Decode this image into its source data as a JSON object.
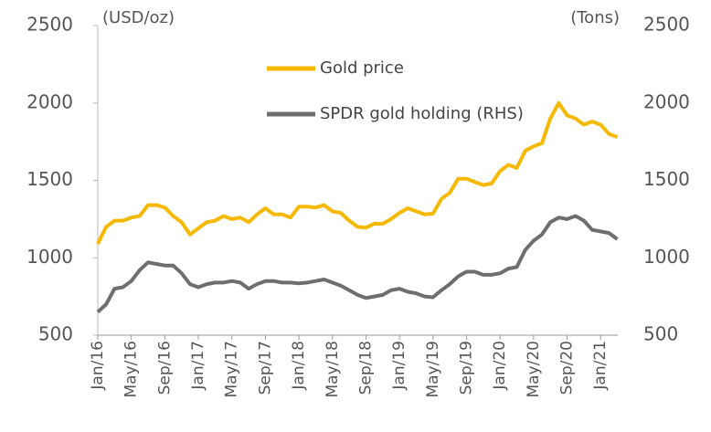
{
  "chart_data": {
    "type": "line",
    "y_label": "(USD/oz)",
    "y2_label": "(Tons)",
    "categories": [
      "Jan/16",
      null,
      null,
      null,
      "May/16",
      null,
      null,
      null,
      "Sep/16",
      null,
      null,
      null,
      "Jan/17",
      null,
      null,
      null,
      "May/17",
      null,
      null,
      null,
      "Sep/17",
      null,
      null,
      null,
      "Jan/18",
      null,
      null,
      null,
      "May/18",
      null,
      null,
      null,
      "Sep/18",
      null,
      null,
      null,
      "Jan/19",
      null,
      null,
      null,
      "May/19",
      null,
      null,
      null,
      "Sep/19",
      null,
      null,
      null,
      "Jan/20",
      null,
      null,
      null,
      "May/20",
      null,
      null,
      null,
      "Sep/20",
      null,
      null,
      null,
      "Jan/21",
      null,
      null
    ],
    "series": [
      {
        "name": "Gold price",
        "color": "#f7b900",
        "values": [
          1090,
          1200,
          1240,
          1240,
          1260,
          1270,
          1340,
          1340,
          1325,
          1270,
          1230,
          1150,
          1190,
          1230,
          1240,
          1270,
          1250,
          1260,
          1230,
          1280,
          1320,
          1280,
          1280,
          1260,
          1330,
          1330,
          1325,
          1340,
          1300,
          1290,
          1240,
          1200,
          1195,
          1220,
          1220,
          1250,
          1290,
          1320,
          1300,
          1280,
          1285,
          1380,
          1420,
          1510,
          1510,
          1490,
          1470,
          1480,
          1560,
          1600,
          1580,
          1690,
          1720,
          1740,
          1900,
          2000,
          1920,
          1900,
          1860,
          1880,
          1860,
          1800,
          1780
        ]
      },
      {
        "name": "SPDR gold holding (RHS)",
        "color": "#6e6e6e",
        "axis": "y2",
        "values": [
          650,
          700,
          800,
          810,
          850,
          920,
          970,
          960,
          950,
          950,
          900,
          830,
          810,
          830,
          840,
          840,
          850,
          840,
          800,
          830,
          850,
          850,
          840,
          840,
          835,
          840,
          850,
          860,
          840,
          820,
          790,
          760,
          740,
          750,
          760,
          790,
          800,
          780,
          770,
          750,
          745,
          790,
          830,
          880,
          910,
          910,
          890,
          890,
          900,
          930,
          940,
          1050,
          1110,
          1150,
          1230,
          1260,
          1250,
          1270,
          1240,
          1180,
          1170,
          1160,
          1120
        ]
      }
    ],
    "ylim": [
      500,
      2500
    ],
    "yticks": [
      500,
      1000,
      1500,
      2000,
      2500
    ],
    "y2lim": [
      500,
      2500
    ],
    "y2ticks": [
      500,
      1000,
      1500,
      2000,
      2500
    ]
  }
}
